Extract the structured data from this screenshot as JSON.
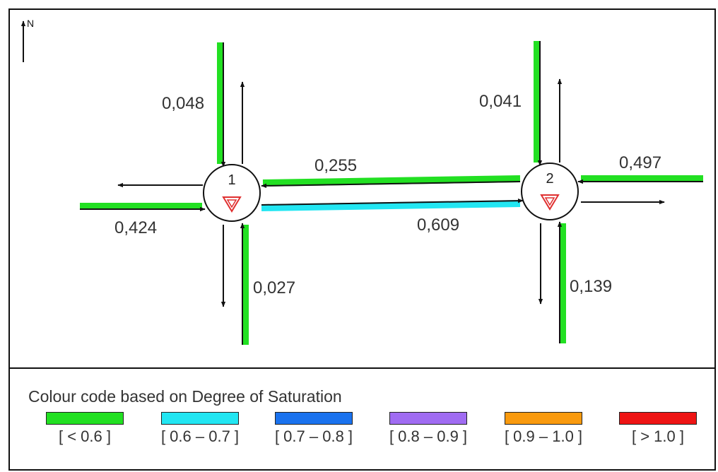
{
  "north": {
    "label": "N"
  },
  "nodes": [
    {
      "id": "node-1",
      "label": "1"
    },
    {
      "id": "node-2",
      "label": "2"
    }
  ],
  "flow_labels": {
    "n1_north": "0,048",
    "n1_west": "0,424",
    "n1_south": "0,027",
    "link_westbound": "0,255",
    "link_eastbound": "0,609",
    "n2_north": "0,041",
    "n2_east": "0,497",
    "n2_south": "0,139"
  },
  "colors": {
    "green": "#22e022",
    "cyan": "#22e6f2",
    "blue": "#1a72ee",
    "purple": "#a06cf2",
    "orange": "#f99a0e",
    "red": "#ee1414",
    "yield_icon": "#e03030"
  },
  "legend": {
    "title": "Colour code based on Degree of Saturation",
    "items": [
      {
        "label": "[ < 0.6 ]",
        "color": "#22e022"
      },
      {
        "label": "[ 0.6 – 0.7 ]",
        "color": "#22e6f2"
      },
      {
        "label": "[ 0.7 – 0.8 ]",
        "color": "#1a72ee"
      },
      {
        "label": "[ 0.8 – 0.9 ]",
        "color": "#a06cf2"
      },
      {
        "label": "[ 0.9 – 1.0 ]",
        "color": "#f99a0e"
      },
      {
        "label": "[ > 1.0 ]",
        "color": "#ee1414"
      }
    ]
  }
}
